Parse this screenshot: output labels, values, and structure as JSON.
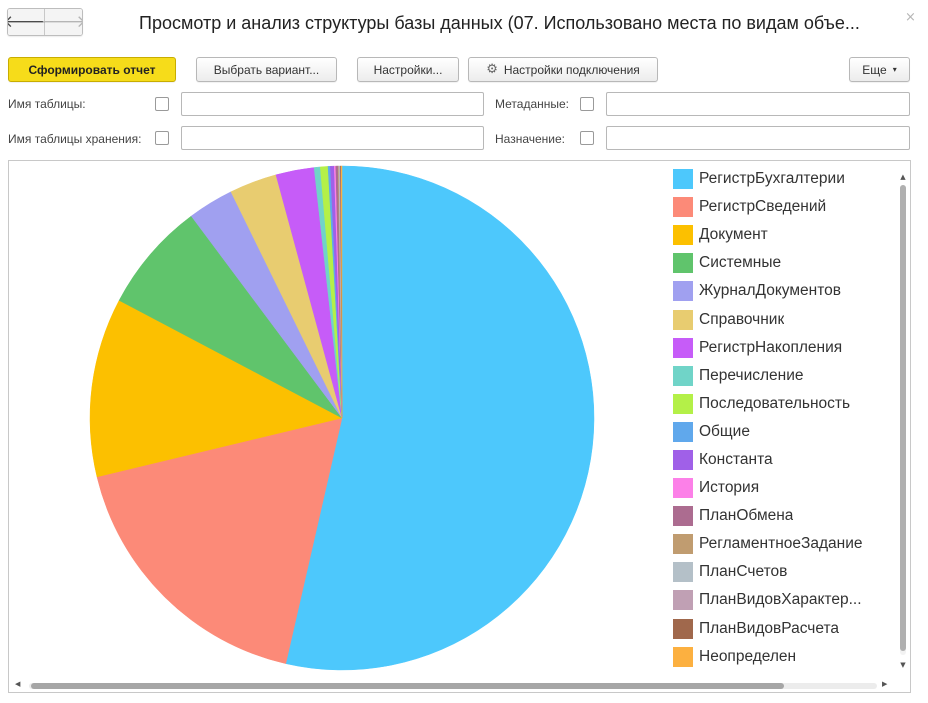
{
  "window": {
    "title": "Просмотр и анализ структуры базы данных (07. Использовано места по видам объе...",
    "close_glyph": "×"
  },
  "nav": {
    "back_glyph": "🡐",
    "forward_glyph": "🡒"
  },
  "toolbar": {
    "generate_label": "Сформировать отчет",
    "choose_variant_label": "Выбрать вариант...",
    "settings_label": "Настройки...",
    "connection_settings_label": "Настройки подключения",
    "more_label": "Еще",
    "more_caret": "▾",
    "gear_icon": "⚙"
  },
  "filters": {
    "table_name_label": "Имя таблицы:",
    "storage_table_name_label": "Имя таблицы хранения:",
    "metadata_label": "Метаданные:",
    "purpose_label": "Назначение:"
  },
  "chart_data": {
    "type": "pie",
    "categories": [
      "РегистрБухгалтерии",
      "РегистрСведений",
      "Документ",
      "Системные",
      "ЖурналДокументов",
      "Справочник",
      "РегистрНакопления",
      "Перечисление",
      "Последовательность",
      "Общие",
      "Константа",
      "История",
      "ПланОбмена",
      "РегламентноеЗадание",
      "ПланСчетов",
      "ПланВидовХарактер...",
      "ПланВидовРасчета",
      "Неопределен"
    ],
    "values": [
      54.6,
      18.0,
      11.7,
      7.2,
      3.0,
      3.1,
      2.5,
      0.4,
      0.5,
      0.15,
      0.25,
      0.1,
      0.15,
      0.05,
      0.05,
      0.05,
      0.05,
      0.05
    ],
    "colors": [
      "#4dc8fc",
      "#fc8a78",
      "#fcc000",
      "#60c46c",
      "#a0a0f0",
      "#e8cc70",
      "#c65cf8",
      "#70d4c8",
      "#b4f048",
      "#60a8ec",
      "#a060e8",
      "#fc80e8",
      "#ac6c90",
      "#c09c70",
      "#b4c0c8",
      "#c0a0b4",
      "#a0684c",
      "#fcb040"
    ],
    "legend_position": "right"
  },
  "scroll": {
    "up": "▲",
    "down": "▼",
    "left": "◀",
    "right": "▶"
  }
}
